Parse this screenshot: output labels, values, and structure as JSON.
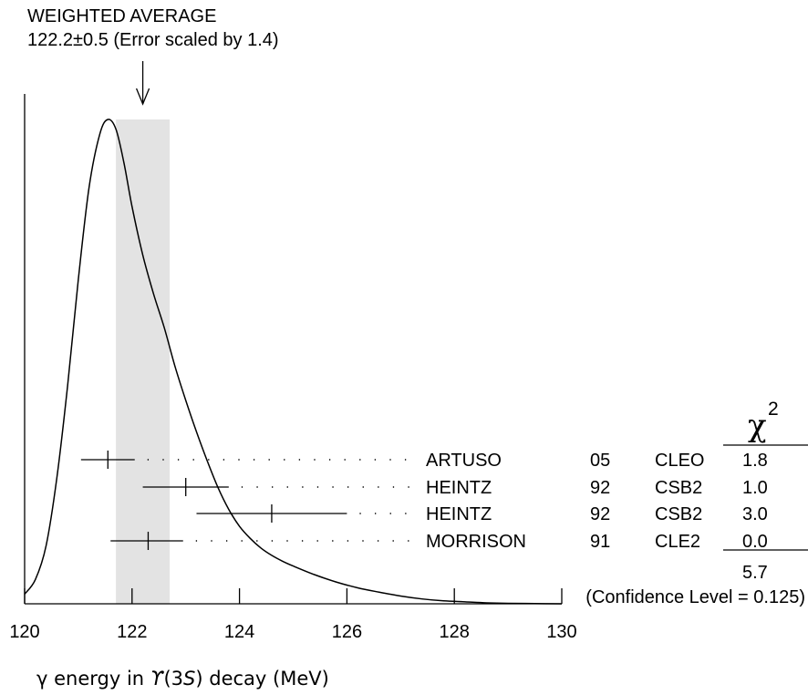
{
  "chart_data": {
    "type": "ideogram",
    "title": "WEIGHTED AVERAGE",
    "subtitle": "122.2±0.5 (Error scaled by 1.4)",
    "weighted_average": {
      "value": 122.2,
      "error": 0.5,
      "scale_factor": 1.4
    },
    "xlabel_prefix": "γ energy in ",
    "xlabel_symbol": "ϒ",
    "xlabel_state": "(3",
    "xlabel_state_letter": "S",
    "xlabel_suffix": ") decay (MeV)",
    "xlim": [
      120,
      130
    ],
    "x_ticks": [
      120,
      122,
      124,
      126,
      128,
      130
    ],
    "x_tick_labels": [
      "120",
      "122",
      "124",
      "126",
      "128",
      "130"
    ],
    "chi2_header": "χ",
    "chi2_header_sup": "2",
    "measurements": [
      {
        "author": "ARTUSO",
        "year": "05",
        "experiment": "CLEO",
        "value": 121.55,
        "error_low": 121.05,
        "error_high": 122.05,
        "chi2": "1.8"
      },
      {
        "author": "HEINTZ",
        "year": "92",
        "experiment": "CSB2",
        "value": 123.0,
        "error_low": 122.2,
        "error_high": 123.8,
        "chi2": "1.0"
      },
      {
        "author": "HEINTZ",
        "year": "92",
        "experiment": "CSB2",
        "value": 124.6,
        "error_low": 123.2,
        "error_high": 126.0,
        "chi2": "3.0"
      },
      {
        "author": "MORRISON",
        "year": "91",
        "experiment": "CLE2",
        "value": 122.3,
        "error_low": 121.6,
        "error_high": 122.95,
        "chi2": "0.0"
      }
    ],
    "chi2_total": "5.7",
    "confidence_level": "(Confidence Level = 0.125)",
    "ideogram_curve": {
      "x": [
        120.0,
        120.2,
        120.4,
        120.6,
        120.8,
        121.0,
        121.2,
        121.4,
        121.55,
        121.7,
        121.85,
        122.0,
        122.2,
        122.4,
        122.6,
        122.8,
        123.0,
        123.2,
        123.4,
        123.6,
        123.8,
        124.0,
        124.2,
        124.4,
        124.6,
        124.8,
        125.0,
        125.4,
        125.8,
        126.2,
        126.6,
        127.0,
        127.4,
        127.8,
        128.2,
        128.6,
        129.0,
        129.5,
        130.0
      ],
      "y": [
        0.02,
        0.05,
        0.12,
        0.26,
        0.45,
        0.67,
        0.86,
        0.97,
        1.0,
        0.98,
        0.91,
        0.82,
        0.72,
        0.64,
        0.57,
        0.49,
        0.42,
        0.355,
        0.295,
        0.24,
        0.195,
        0.16,
        0.135,
        0.115,
        0.1,
        0.088,
        0.078,
        0.06,
        0.045,
        0.033,
        0.024,
        0.016,
        0.01,
        0.006,
        0.004,
        0.002,
        0.001,
        0.0005,
        0.0
      ]
    }
  }
}
